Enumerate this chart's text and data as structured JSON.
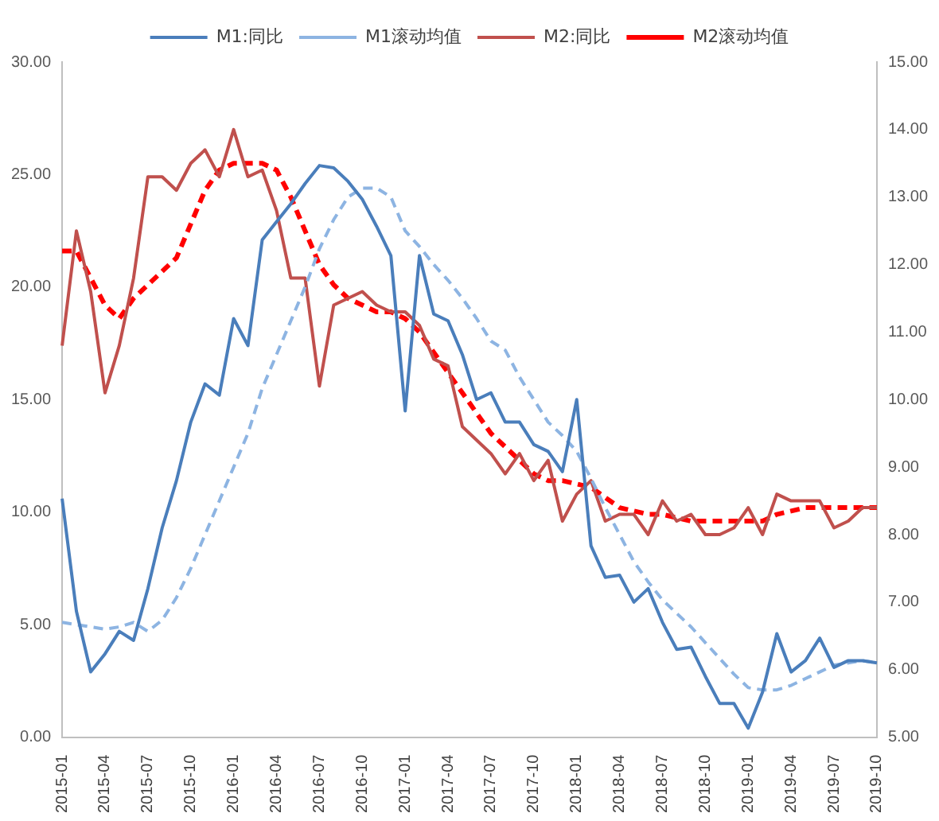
{
  "chart_data": {
    "type": "line",
    "categories": [
      "2015-01",
      null,
      null,
      "2015-04",
      null,
      null,
      "2015-07",
      null,
      null,
      "2015-10",
      null,
      null,
      "2016-01",
      null,
      null,
      "2016-04",
      null,
      null,
      "2016-07",
      null,
      null,
      "2016-10",
      null,
      null,
      "2017-01",
      null,
      null,
      "2017-04",
      null,
      null,
      "2017-07",
      null,
      null,
      "2017-10",
      null,
      null,
      "2018-01",
      null,
      null,
      "2018-04",
      null,
      null,
      "2018-07",
      null,
      null,
      "2018-10",
      null,
      null,
      "2019-01",
      null,
      null,
      "2019-04",
      null,
      null,
      "2019-07",
      null,
      null,
      "2019-10"
    ],
    "series": [
      {
        "name": "M1:同比",
        "color": "#4a7ebb",
        "line_style": "solid",
        "values": [
          10.6,
          5.6,
          2.9,
          3.7,
          4.7,
          4.3,
          6.6,
          9.3,
          11.4,
          14.0,
          15.7,
          15.2,
          18.6,
          17.4,
          22.1,
          22.9,
          23.7,
          24.6,
          25.4,
          25.3,
          24.7,
          23.9,
          22.7,
          21.4,
          14.5,
          21.4,
          18.8,
          18.5,
          17.0,
          15.0,
          15.3,
          14.0,
          14.0,
          13.0,
          12.7,
          11.8,
          15.0,
          8.5,
          7.1,
          7.2,
          6.0,
          6.6,
          5.1,
          3.9,
          4.0,
          2.7,
          1.5,
          1.5,
          0.4,
          2.0,
          4.6,
          2.9,
          3.4,
          4.4,
          3.1,
          3.4,
          3.4,
          3.3
        ]
      },
      {
        "name": "M1滚动均值",
        "color": "#8db4e2",
        "line_style": "dashed",
        "values": [
          5.1,
          5.0,
          4.9,
          4.8,
          4.9,
          5.1,
          4.7,
          5.2,
          6.2,
          7.5,
          9.0,
          10.5,
          12.0,
          13.5,
          15.5,
          17.0,
          18.5,
          20.0,
          21.7,
          23.0,
          24.0,
          24.4,
          24.4,
          24.0,
          22.5,
          21.8,
          21.0,
          20.3,
          19.5,
          18.6,
          17.6,
          17.2,
          16.0,
          15.0,
          14.0,
          13.4,
          12.7,
          11.5,
          10.2,
          9.0,
          7.8,
          6.9,
          6.1,
          5.5,
          4.9,
          4.2,
          3.5,
          2.8,
          2.2,
          2.1,
          2.1,
          2.3,
          2.6,
          2.9,
          3.2,
          3.3,
          3.4,
          3.3
        ]
      },
      {
        "name": "M2:同比",
        "color": "#c0504d",
        "line_style": "solid",
        "axis": "y2",
        "values": [
          10.8,
          12.5,
          11.6,
          10.1,
          10.8,
          11.8,
          13.3,
          13.3,
          13.1,
          13.5,
          13.7,
          13.3,
          14.0,
          13.3,
          13.4,
          12.8,
          11.8,
          11.8,
          10.2,
          11.4,
          11.5,
          11.6,
          11.4,
          11.3,
          11.3,
          11.1,
          10.6,
          10.5,
          9.6,
          9.4,
          9.2,
          8.9,
          9.2,
          8.8,
          9.1,
          8.2,
          8.6,
          8.8,
          8.2,
          8.3,
          8.3,
          8.0,
          8.5,
          8.2,
          8.3,
          8.0,
          8.0,
          8.1,
          8.4,
          8.0,
          8.6,
          8.5,
          8.5,
          8.5,
          8.1,
          8.2,
          8.4,
          8.4
        ]
      },
      {
        "name": "M2滚动均值",
        "color": "#ff0000",
        "line_style": "dashed",
        "axis": "y2",
        "values": [
          12.2,
          12.2,
          11.8,
          11.4,
          11.2,
          11.5,
          11.7,
          11.9,
          12.1,
          12.6,
          13.1,
          13.4,
          13.5,
          13.5,
          13.5,
          13.4,
          13.0,
          12.5,
          12.0,
          11.7,
          11.5,
          11.4,
          11.3,
          11.3,
          11.2,
          11.0,
          10.7,
          10.4,
          10.1,
          9.8,
          9.5,
          9.3,
          9.1,
          8.9,
          8.8,
          8.8,
          8.75,
          8.7,
          8.55,
          8.4,
          8.35,
          8.3,
          8.3,
          8.25,
          8.2,
          8.2,
          8.2,
          8.2,
          8.2,
          8.2,
          8.3,
          8.35,
          8.4,
          8.4,
          8.4,
          8.4,
          8.4,
          8.4
        ]
      }
    ],
    "ylim": [
      0,
      30
    ],
    "yticks": [
      {
        "value": 0,
        "label": "0.00"
      },
      {
        "value": 5,
        "label": "5.00"
      },
      {
        "value": 10,
        "label": "10.00"
      },
      {
        "value": 15,
        "label": "15.00"
      },
      {
        "value": 20,
        "label": "20.00"
      },
      {
        "value": 25,
        "label": "25.00"
      },
      {
        "value": 30,
        "label": "30.00"
      }
    ],
    "y2lim": [
      5,
      15
    ],
    "y2ticks": [
      {
        "value": 5,
        "label": "5.00"
      },
      {
        "value": 6,
        "label": "6.00"
      },
      {
        "value": 7,
        "label": "7.00"
      },
      {
        "value": 8,
        "label": "8.00"
      },
      {
        "value": 9,
        "label": "9.00"
      },
      {
        "value": 10,
        "label": "10.00"
      },
      {
        "value": 11,
        "label": "11.00"
      },
      {
        "value": 12,
        "label": "12.00"
      },
      {
        "value": 13,
        "label": "13.00"
      },
      {
        "value": 14,
        "label": "14.00"
      },
      {
        "value": 15,
        "label": "15.00"
      }
    ],
    "grid": false,
    "legend": "top",
    "marker": "none"
  }
}
